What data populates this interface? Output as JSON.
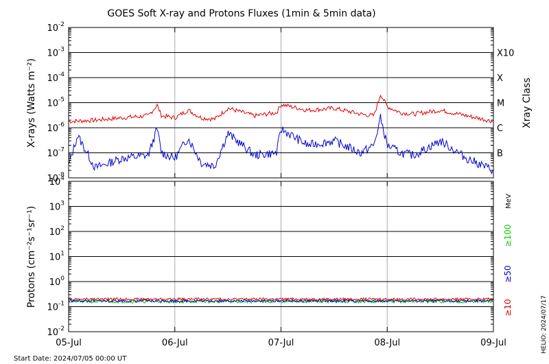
{
  "title": "GOES Soft X-ray and Protons Fluxes   (1min & 5min data)",
  "start_date": "Start Date: 2024/07/05 00:00 UT",
  "helio_stamp": "HELIO: 2024/07/17",
  "x_ticks": [
    "05-Jul",
    "06-Jul",
    "07-Jul",
    "08-Jul",
    "09-Jul"
  ],
  "colors": {
    "xray_long": "#dd0000",
    "xray_short": "#0000cc",
    "proton_10": "#dd0000",
    "proton_50": "#0000cc",
    "proton_100": "#00cc00"
  },
  "chart_data": [
    {
      "type": "line",
      "ylabel": "X-rays (Watts m⁻²)",
      "yscale": "log",
      "ylim": [
        1e-08,
        0.01
      ],
      "xlim": [
        "2024-07-05",
        "2024-07-09"
      ],
      "y_ticks": [
        {
          "base": "10",
          "exp": "-2"
        },
        {
          "base": "10",
          "exp": "-3"
        },
        {
          "base": "10",
          "exp": "-4"
        },
        {
          "base": "10",
          "exp": "-5"
        },
        {
          "base": "10",
          "exp": "-6"
        },
        {
          "base": "10",
          "exp": "-7"
        },
        {
          "base": "10",
          "exp": "-8"
        }
      ],
      "right_axis_label": "Xray Class",
      "class_labels": [
        {
          "label": "X10",
          "flux": 0.001
        },
        {
          "label": "X",
          "flux": 0.0001
        },
        {
          "label": "M",
          "flux": 1e-05
        },
        {
          "label": "C",
          "flux": 1e-06
        },
        {
          "label": "B",
          "flux": 1e-07
        }
      ],
      "series": [
        {
          "key": "long",
          "x": [
            "2024-07-05 00:00",
            "2024-07-05 06:00",
            "2024-07-05 12:00",
            "2024-07-05 18:00",
            "2024-07-05 20:00",
            "2024-07-05 21:00",
            "2024-07-06 00:00",
            "2024-07-06 03:00",
            "2024-07-06 06:00",
            "2024-07-06 09:00",
            "2024-07-06 12:00",
            "2024-07-06 18:00",
            "2024-07-06 23:00",
            "2024-07-07 00:00",
            "2024-07-07 06:00",
            "2024-07-07 12:00",
            "2024-07-07 18:00",
            "2024-07-07 21:00",
            "2024-07-07 22:30",
            "2024-07-08 00:00",
            "2024-07-08 03:00",
            "2024-07-08 06:00",
            "2024-07-08 12:00",
            "2024-07-08 18:00",
            "2024-07-09 00:00"
          ],
          "values": [
            1.8e-06,
            2e-06,
            2.5e-06,
            3e-06,
            8e-06,
            3e-06,
            2.5e-06,
            5e-06,
            2.5e-06,
            2.2e-06,
            6e-06,
            3e-06,
            4e-06,
            8.5e-06,
            5e-06,
            6e-06,
            3.5e-06,
            3e-06,
            2.2e-05,
            7e-06,
            4e-06,
            3.5e-06,
            5e-06,
            3e-06,
            1.8e-06
          ]
        },
        {
          "key": "short",
          "x": [
            "2024-07-05 00:00",
            "2024-07-05 02:00",
            "2024-07-05 06:00",
            "2024-07-05 12:00",
            "2024-07-05 18:00",
            "2024-07-05 20:00",
            "2024-07-05 21:00",
            "2024-07-06 00:00",
            "2024-07-06 03:00",
            "2024-07-06 06:00",
            "2024-07-06 09:00",
            "2024-07-06 12:00",
            "2024-07-06 18:00",
            "2024-07-06 23:00",
            "2024-07-07 00:00",
            "2024-07-07 06:00",
            "2024-07-07 12:00",
            "2024-07-07 18:00",
            "2024-07-07 21:00",
            "2024-07-07 22:30",
            "2024-07-08 00:00",
            "2024-07-08 03:00",
            "2024-07-08 06:00",
            "2024-07-08 12:00",
            "2024-07-08 18:00",
            "2024-07-09 00:00"
          ],
          "values": [
            3e-08,
            5e-07,
            2.5e-08,
            6e-08,
            8e-08,
            9e-07,
            1e-07,
            6e-08,
            4e-07,
            4e-08,
            3e-08,
            6e-07,
            8e-08,
            1e-07,
            9e-07,
            2e-07,
            3e-07,
            1e-07,
            2e-07,
            2.5e-06,
            2e-07,
            1e-07,
            8e-08,
            3e-07,
            6e-08,
            2e-08
          ]
        }
      ]
    },
    {
      "type": "line",
      "ylabel": "Protons (cm⁻²s⁻¹sr⁻¹)",
      "yscale": "log",
      "ylim": [
        0.01,
        10000
      ],
      "xlim": [
        "2024-07-05",
        "2024-07-09"
      ],
      "y_ticks": [
        {
          "base": "10",
          "exp": "4"
        },
        {
          "base": "10",
          "exp": "3"
        },
        {
          "base": "10",
          "exp": "2"
        },
        {
          "base": "10",
          "exp": "1"
        },
        {
          "base": "10",
          "exp": "0"
        },
        {
          "base": "10",
          "exp": "-1"
        },
        {
          "base": "10",
          "exp": "-2"
        }
      ],
      "threshold_line": 10,
      "right_labels": {
        "mev": "MeV",
        "p100": "≥100",
        "p50": "≥50",
        "p10": "≥10"
      },
      "series": [
        {
          "key": "p10",
          "x": [
            "2024-07-05",
            "2024-07-09"
          ],
          "values": [
            0.2,
            0.2
          ]
        },
        {
          "key": "p50",
          "x": [
            "2024-07-05",
            "2024-07-09"
          ],
          "values": [
            0.17,
            0.17
          ]
        },
        {
          "key": "p100",
          "x": [
            "2024-07-05",
            "2024-07-09"
          ],
          "values": [
            0.16,
            0.16
          ]
        }
      ]
    }
  ]
}
